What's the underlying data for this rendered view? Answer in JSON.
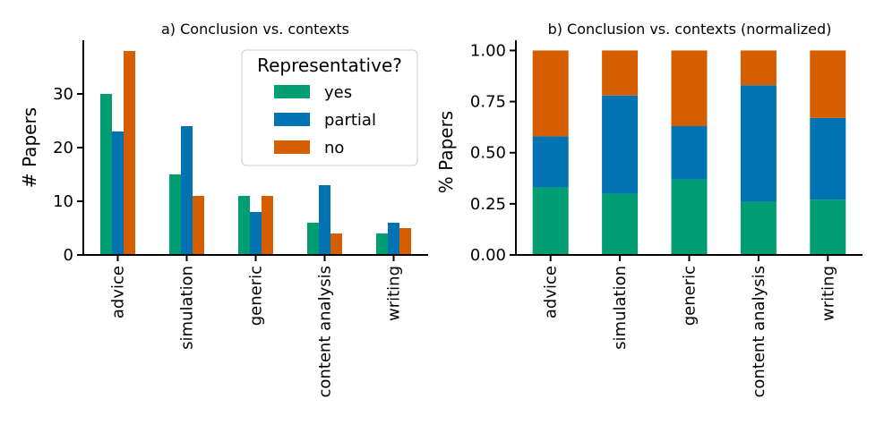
{
  "chart_data": [
    {
      "type": "bar",
      "title": "a) Conclusion vs. contexts",
      "xlabel": "",
      "ylabel": "# Papers",
      "categories": [
        "advice",
        "simulation",
        "generic",
        "content analysis",
        "writing"
      ],
      "series": [
        {
          "name": "yes",
          "color": "#029e73",
          "values": [
            30,
            15,
            11,
            6,
            4
          ]
        },
        {
          "name": "partial",
          "color": "#0173b2",
          "values": [
            23,
            24,
            8,
            13,
            6
          ]
        },
        {
          "name": "no",
          "color": "#d55e00",
          "values": [
            38,
            11,
            11,
            4,
            5
          ]
        }
      ],
      "ylim": [
        0,
        40
      ],
      "yticks": [
        0,
        10,
        20,
        30
      ],
      "legend": {
        "title": "Representative?",
        "placement": "top-right"
      }
    },
    {
      "type": "bar",
      "stacked": true,
      "title": "b) Conclusion vs. contexts (normalized)",
      "xlabel": "",
      "ylabel": "% Papers",
      "categories": [
        "advice",
        "simulation",
        "generic",
        "content analysis",
        "writing"
      ],
      "series": [
        {
          "name": "yes",
          "color": "#029e73",
          "values": [
            0.33,
            0.3,
            0.37,
            0.26,
            0.27
          ]
        },
        {
          "name": "partial",
          "color": "#0173b2",
          "values": [
            0.25,
            0.48,
            0.26,
            0.57,
            0.4
          ]
        },
        {
          "name": "no",
          "color": "#d55e00",
          "values": [
            0.42,
            0.22,
            0.37,
            0.17,
            0.33
          ]
        }
      ],
      "ylim": [
        0,
        1.05
      ],
      "yticks": [
        "0.00",
        "0.25",
        "0.50",
        "0.75",
        "1.00"
      ]
    }
  ]
}
